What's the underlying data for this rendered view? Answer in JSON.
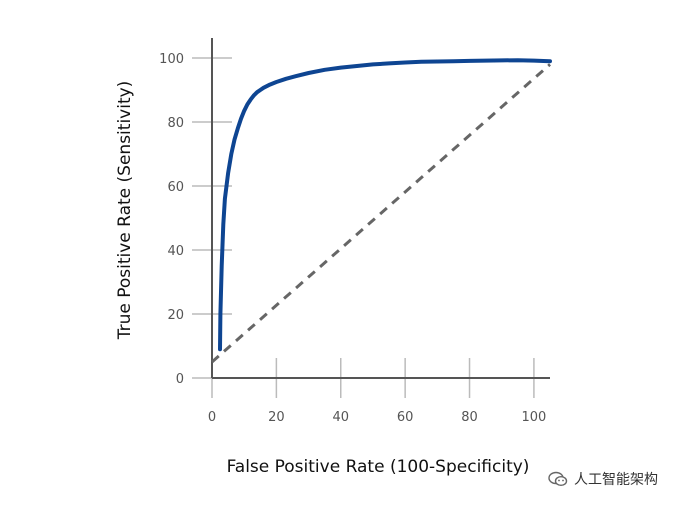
{
  "chart_data": {
    "type": "line",
    "xlabel": "False Positive Rate (100-Specificity)",
    "ylabel": "True Positive Rate (Sensitivity)",
    "xlim": [
      0,
      105
    ],
    "ylim": [
      0,
      100
    ],
    "xticks": [
      "0",
      "20",
      "40",
      "60",
      "80",
      "100"
    ],
    "yticks": [
      "0",
      "20",
      "40",
      "60",
      "80",
      "100"
    ],
    "grid": false,
    "series": [
      {
        "style": "solid",
        "color": "#0e4592",
        "x": [
          2.5,
          2.6,
          3,
          3.5,
          4,
          5,
          6,
          7,
          8,
          9,
          10,
          11,
          12,
          13,
          14,
          15,
          16,
          18,
          20,
          23,
          26,
          30,
          35,
          40,
          45,
          50,
          55,
          60,
          65,
          70,
          75,
          80,
          85,
          90,
          95,
          100,
          105
        ],
        "y": [
          9,
          20,
          35,
          48,
          56,
          64,
          70,
          74.5,
          78,
          81,
          83.5,
          85.5,
          87,
          88.3,
          89.3,
          90,
          90.7,
          91.7,
          92.5,
          93.5,
          94.3,
          95.3,
          96.3,
          97,
          97.5,
          98,
          98.3,
          98.6,
          98.8,
          98.9,
          99,
          99.1,
          99.2,
          99.25,
          99.3,
          99.2,
          99
        ]
      },
      {
        "style": "dashed",
        "color": "#666666",
        "x": [
          0,
          105
        ],
        "y": [
          5,
          98
        ]
      }
    ]
  },
  "watermark": {
    "icon": "wechat-icon",
    "text": "人工智能架构"
  }
}
